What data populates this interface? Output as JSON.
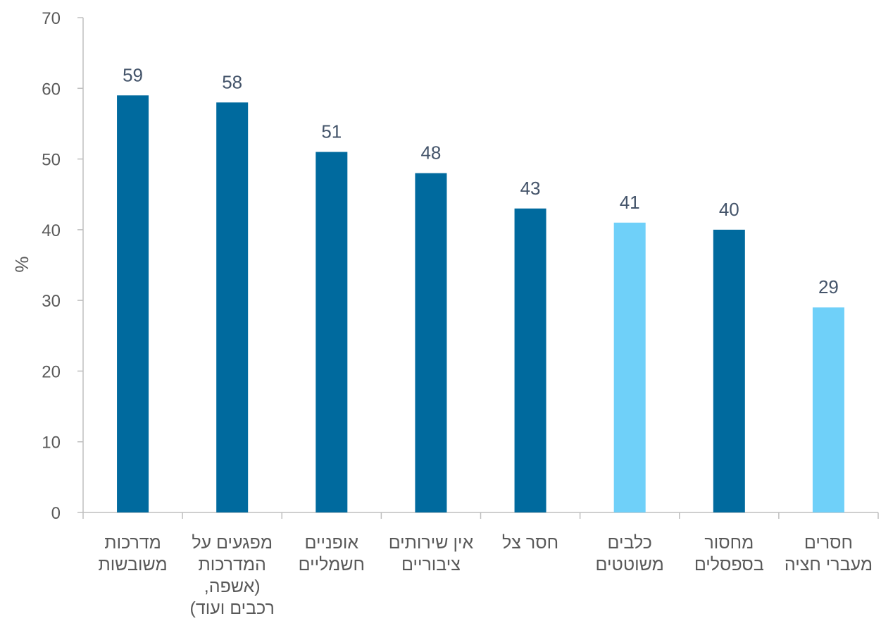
{
  "chart_data": {
    "type": "bar",
    "ylabel": "%",
    "ylim": [
      0,
      70
    ],
    "yticks": [
      "0",
      "10",
      "20",
      "30",
      "40",
      "50",
      "60",
      "70"
    ],
    "grid": false,
    "categories": [
      [
        "מדרכות",
        "משובשות"
      ],
      [
        "מפגעים על",
        "המדרכות",
        "(אשפה,",
        "רכבים ועוד)"
      ],
      [
        "אופניים",
        "חשמליים"
      ],
      [
        "אין שירותים",
        "ציבוריים"
      ],
      [
        "חסר צל"
      ],
      [
        "כלבים",
        "משוטטים"
      ],
      [
        "מחסור",
        "בספסלים"
      ],
      [
        "חסרים",
        "מעברי חציה"
      ]
    ],
    "values": [
      59,
      58,
      51,
      48,
      43,
      41,
      40,
      29
    ],
    "bar_colors": [
      "#006a9e",
      "#006a9e",
      "#006a9e",
      "#006a9e",
      "#006a9e",
      "#6fd0f9",
      "#006a9e",
      "#6fd0f9"
    ],
    "axis_color": "#bfbfbf"
  }
}
